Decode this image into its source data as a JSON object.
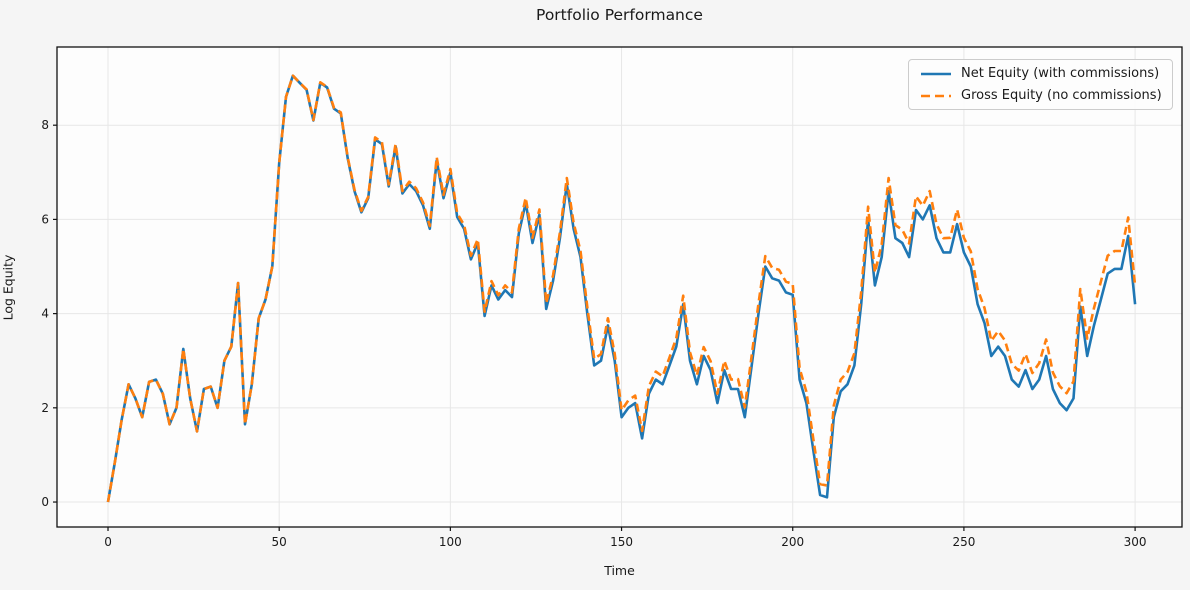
{
  "title": "Portfolio Performance",
  "colors": {
    "net": "#1f77b4",
    "gross": "#ff7f0e",
    "figure_bg": "#f5f5f5",
    "axes_bg": "#fdfdfd",
    "grid": "#e7e7e7",
    "spine": "#111111",
    "text": "#1a1a1a"
  },
  "chart_data": {
    "type": "line",
    "title": "Portfolio Performance",
    "xlabel": "Time",
    "ylabel": "Log Equity",
    "grid": true,
    "legend_position": "upper right",
    "x_ticks": [
      0,
      50,
      100,
      150,
      200,
      250,
      300
    ],
    "y_ticks": [
      0,
      2,
      4,
      6,
      8
    ],
    "xlim": [
      -14.9,
      313.7
    ],
    "ylim": [
      -0.53,
      9.66
    ],
    "x": [
      0,
      2,
      4,
      6,
      8,
      10,
      12,
      14,
      16,
      18,
      20,
      22,
      24,
      26,
      28,
      30,
      32,
      34,
      36,
      38,
      40,
      42,
      44,
      46,
      48,
      50,
      52,
      54,
      56,
      58,
      60,
      62,
      64,
      66,
      68,
      70,
      72,
      74,
      76,
      78,
      80,
      82,
      84,
      86,
      88,
      90,
      92,
      94,
      96,
      98,
      100,
      102,
      104,
      106,
      108,
      110,
      112,
      114,
      116,
      118,
      120,
      122,
      124,
      126,
      128,
      130,
      132,
      134,
      136,
      138,
      140,
      142,
      144,
      146,
      148,
      150,
      152,
      154,
      156,
      158,
      160,
      162,
      164,
      166,
      168,
      170,
      172,
      174,
      176,
      178,
      180,
      182,
      184,
      186,
      188,
      190,
      192,
      194,
      196,
      198,
      200,
      202,
      204,
      206,
      208,
      210,
      212,
      214,
      216,
      218,
      220,
      222,
      224,
      226,
      228,
      230,
      232,
      234,
      236,
      238,
      240,
      242,
      244,
      246,
      248,
      250,
      252,
      254,
      256,
      258,
      260,
      262,
      264,
      266,
      268,
      270,
      272,
      274,
      276,
      278,
      280,
      282,
      284,
      286,
      288,
      290,
      292,
      294,
      296,
      298,
      300
    ],
    "series": [
      {
        "name": "Net Equity (with commissions)",
        "style": "solid",
        "color": "#1f77b4",
        "values": [
          0.0,
          0.85,
          1.75,
          2.5,
          2.2,
          1.8,
          2.55,
          2.6,
          2.3,
          1.65,
          2.0,
          3.25,
          2.2,
          1.5,
          2.4,
          2.45,
          2.0,
          3.0,
          3.3,
          4.65,
          1.65,
          2.5,
          3.9,
          4.3,
          5.0,
          7.2,
          8.6,
          9.05,
          8.9,
          8.75,
          8.1,
          8.9,
          8.8,
          8.35,
          8.25,
          7.3,
          6.6,
          6.15,
          6.45,
          7.7,
          7.6,
          6.7,
          7.55,
          6.55,
          6.75,
          6.6,
          6.3,
          5.8,
          7.25,
          6.45,
          7.0,
          6.05,
          5.8,
          5.15,
          5.5,
          3.95,
          4.6,
          4.3,
          4.5,
          4.35,
          5.7,
          6.35,
          5.5,
          6.1,
          4.1,
          4.7,
          5.6,
          6.75,
          5.8,
          5.2,
          4.0,
          2.9,
          3.0,
          3.75,
          3.0,
          1.8,
          2.0,
          2.1,
          1.35,
          2.3,
          2.6,
          2.5,
          2.9,
          3.3,
          4.2,
          3.0,
          2.5,
          3.1,
          2.8,
          2.1,
          2.8,
          2.4,
          2.4,
          1.8,
          2.9,
          4.0,
          5.0,
          4.75,
          4.7,
          4.45,
          4.4,
          2.6,
          2.1,
          1.1,
          0.15,
          0.1,
          1.8,
          2.35,
          2.5,
          2.9,
          4.2,
          6.0,
          4.6,
          5.2,
          6.6,
          5.6,
          5.5,
          5.2,
          6.2,
          6.0,
          6.3,
          5.6,
          5.3,
          5.3,
          5.9,
          5.3,
          5.0,
          4.2,
          3.8,
          3.1,
          3.3,
          3.1,
          2.6,
          2.45,
          2.8,
          2.4,
          2.6,
          3.1,
          2.4,
          2.1,
          1.95,
          2.2,
          4.15,
          3.1,
          3.75,
          4.3,
          4.85,
          4.95,
          4.95,
          5.65,
          4.2
        ]
      },
      {
        "name": "Gross Equity (no commissions)",
        "style": "dashed",
        "color": "#ff7f0e",
        "values": [
          0.0,
          0.85,
          1.75,
          2.5,
          2.2,
          1.8,
          2.55,
          2.6,
          2.3,
          1.65,
          2.0,
          3.25,
          2.2,
          1.5,
          2.4,
          2.45,
          2.0,
          3.0,
          3.3,
          4.65,
          1.65,
          2.5,
          3.9,
          4.3,
          5.0,
          7.2,
          8.6,
          9.05,
          8.9,
          8.76,
          8.11,
          8.91,
          8.81,
          8.37,
          8.27,
          7.32,
          6.63,
          6.18,
          6.48,
          7.74,
          7.64,
          6.74,
          7.6,
          6.6,
          6.8,
          6.66,
          6.36,
          5.86,
          7.32,
          6.52,
          7.07,
          6.13,
          5.88,
          5.23,
          5.58,
          4.04,
          4.69,
          4.39,
          4.6,
          4.45,
          5.8,
          6.46,
          5.61,
          6.21,
          4.22,
          4.82,
          5.72,
          6.88,
          5.93,
          5.33,
          4.14,
          3.04,
          3.14,
          3.9,
          3.15,
          1.95,
          2.16,
          2.26,
          1.51,
          2.46,
          2.77,
          2.67,
          3.07,
          3.48,
          4.38,
          3.18,
          2.69,
          3.29,
          2.99,
          2.3,
          3.0,
          2.6,
          2.61,
          2.01,
          3.11,
          4.22,
          5.22,
          4.97,
          4.93,
          4.68,
          4.63,
          2.84,
          2.34,
          1.34,
          0.38,
          0.35,
          2.05,
          2.6,
          2.76,
          3.16,
          4.46,
          6.27,
          4.87,
          5.47,
          6.88,
          5.88,
          5.78,
          5.49,
          6.49,
          6.29,
          6.6,
          5.9,
          5.6,
          5.61,
          6.21,
          5.61,
          5.32,
          4.52,
          4.12,
          3.42,
          3.63,
          3.43,
          2.93,
          2.79,
          3.14,
          2.74,
          2.95,
          3.45,
          2.75,
          2.46,
          2.31,
          2.56,
          4.52,
          3.47,
          4.12,
          4.68,
          5.23,
          5.33,
          5.33,
          6.04,
          4.59
        ]
      }
    ]
  }
}
